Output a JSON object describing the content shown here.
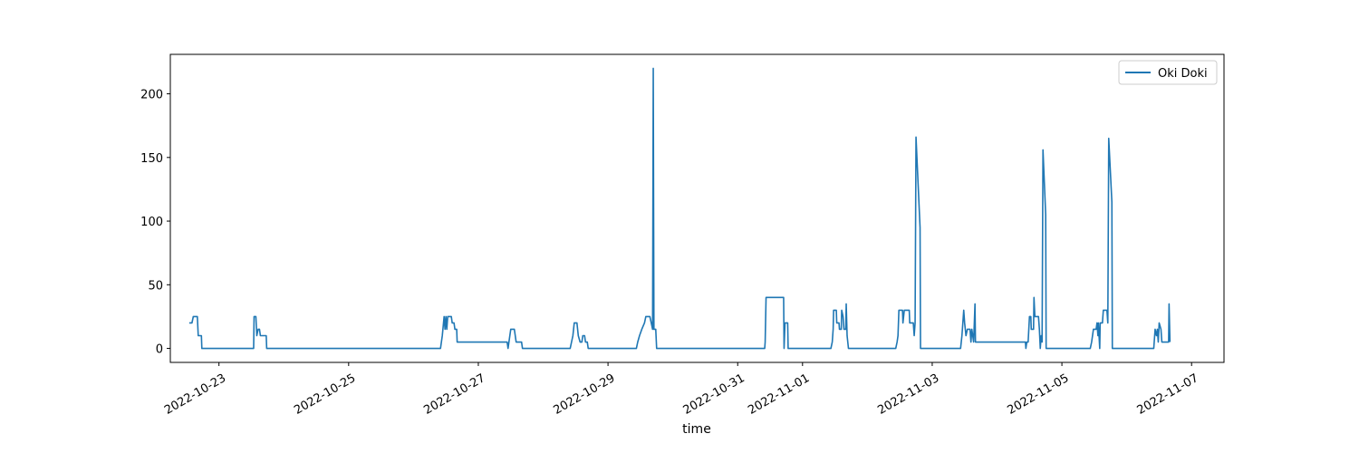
{
  "chart_data": {
    "type": "line",
    "title": "",
    "xlabel": "time",
    "ylabel": "",
    "x_tick_labels": [
      "2022-10-23",
      "2022-10-25",
      "2022-10-27",
      "2022-10-29",
      "2022-10-31",
      "2022-11-01",
      "2022-11-03",
      "2022-11-05",
      "2022-11-07"
    ],
    "x_tick_dates": [
      "2022-10-23",
      "2022-10-25",
      "2022-10-27",
      "2022-10-29",
      "2022-10-31",
      "2022-11-01",
      "2022-11-03",
      "2022-11-05",
      "2022-11-07"
    ],
    "y_ticks": [
      0,
      50,
      100,
      150,
      200
    ],
    "xlim": [
      "2022-10-22 06:00",
      "2022-11-07 12:00"
    ],
    "ylim": [
      -11,
      231
    ],
    "grid": false,
    "legend_placement": "top-right",
    "series": [
      {
        "name": "Oki Doki",
        "color": "#1f77b4",
        "points": [
          [
            "2022-10-22 13:00",
            20
          ],
          [
            "2022-10-22 14:00",
            20
          ],
          [
            "2022-10-22 14:30",
            25
          ],
          [
            "2022-10-22 16:00",
            25
          ],
          [
            "2022-10-22 16:20",
            10
          ],
          [
            "2022-10-22 17:30",
            10
          ],
          [
            "2022-10-22 17:40",
            0
          ],
          [
            "2022-10-23 12:50",
            0
          ],
          [
            "2022-10-23 13:00",
            25
          ],
          [
            "2022-10-23 13:40",
            25
          ],
          [
            "2022-10-23 14:00",
            10
          ],
          [
            "2022-10-23 14:30",
            15
          ],
          [
            "2022-10-23 15:00",
            15
          ],
          [
            "2022-10-23 15:20",
            10
          ],
          [
            "2022-10-23 17:30",
            10
          ],
          [
            "2022-10-23 17:40",
            0
          ],
          [
            "2022-10-26 10:00",
            0
          ],
          [
            "2022-10-26 10:40",
            10
          ],
          [
            "2022-10-26 11:20",
            25
          ],
          [
            "2022-10-26 11:40",
            15
          ],
          [
            "2022-10-26 12:00",
            25
          ],
          [
            "2022-10-26 12:20",
            15
          ],
          [
            "2022-10-26 12:40",
            25
          ],
          [
            "2022-10-26 14:00",
            25
          ],
          [
            "2022-10-26 14:20",
            20
          ],
          [
            "2022-10-26 15:00",
            20
          ],
          [
            "2022-10-26 15:20",
            15
          ],
          [
            "2022-10-26 16:00",
            15
          ],
          [
            "2022-10-26 16:10",
            5
          ],
          [
            "2022-10-27 10:40",
            5
          ],
          [
            "2022-10-27 11:00",
            0
          ],
          [
            "2022-10-27 11:20",
            5
          ],
          [
            "2022-10-27 12:00",
            15
          ],
          [
            "2022-10-27 13:20",
            15
          ],
          [
            "2022-10-27 13:40",
            10
          ],
          [
            "2022-10-27 14:00",
            5
          ],
          [
            "2022-10-27 16:00",
            5
          ],
          [
            "2022-10-27 16:20",
            0
          ],
          [
            "2022-10-28 10:00",
            0
          ],
          [
            "2022-10-28 10:30",
            5
          ],
          [
            "2022-10-28 11:00",
            10
          ],
          [
            "2022-10-28 11:30",
            20
          ],
          [
            "2022-10-28 12:30",
            20
          ],
          [
            "2022-10-28 13:00",
            10
          ],
          [
            "2022-10-28 13:40",
            5
          ],
          [
            "2022-10-28 14:20",
            5
          ],
          [
            "2022-10-28 14:40",
            10
          ],
          [
            "2022-10-28 15:20",
            10
          ],
          [
            "2022-10-28 15:40",
            5
          ],
          [
            "2022-10-28 16:20",
            5
          ],
          [
            "2022-10-28 16:40",
            0
          ],
          [
            "2022-10-29 10:30",
            0
          ],
          [
            "2022-10-29 11:00",
            5
          ],
          [
            "2022-10-29 11:40",
            10
          ],
          [
            "2022-10-29 12:30",
            15
          ],
          [
            "2022-10-29 13:30",
            20
          ],
          [
            "2022-10-29 14:00",
            25
          ],
          [
            "2022-10-29 15:30",
            25
          ],
          [
            "2022-10-29 16:00",
            20
          ],
          [
            "2022-10-29 16:30",
            15
          ],
          [
            "2022-10-29 16:45",
            220
          ],
          [
            "2022-10-29 17:00",
            15
          ],
          [
            "2022-10-29 17:40",
            15
          ],
          [
            "2022-10-29 18:00",
            0
          ],
          [
            "2022-10-31 10:00",
            0
          ],
          [
            "2022-10-31 10:10",
            5
          ],
          [
            "2022-10-31 10:30",
            40
          ],
          [
            "2022-10-31 17:00",
            40
          ],
          [
            "2022-10-31 17:10",
            0
          ],
          [
            "2022-10-31 17:30",
            20
          ],
          [
            "2022-10-31 18:30",
            20
          ],
          [
            "2022-10-31 18:40",
            0
          ],
          [
            "2022-11-01 10:30",
            0
          ],
          [
            "2022-11-01 11:00",
            5
          ],
          [
            "2022-11-01 11:20",
            15
          ],
          [
            "2022-11-01 11:30",
            30
          ],
          [
            "2022-11-01 12:30",
            30
          ],
          [
            "2022-11-01 12:40",
            20
          ],
          [
            "2022-11-01 13:30",
            20
          ],
          [
            "2022-11-01 13:40",
            15
          ],
          [
            "2022-11-01 14:20",
            15
          ],
          [
            "2022-11-01 14:30",
            30
          ],
          [
            "2022-11-01 15:00",
            25
          ],
          [
            "2022-11-01 15:20",
            15
          ],
          [
            "2022-11-01 16:00",
            15
          ],
          [
            "2022-11-01 16:10",
            35
          ],
          [
            "2022-11-01 16:30",
            10
          ],
          [
            "2022-11-01 17:00",
            0
          ],
          [
            "2022-11-02 10:30",
            0
          ],
          [
            "2022-11-02 11:00",
            5
          ],
          [
            "2022-11-02 11:20",
            10
          ],
          [
            "2022-11-02 11:40",
            30
          ],
          [
            "2022-11-02 13:00",
            30
          ],
          [
            "2022-11-02 13:10",
            20
          ],
          [
            "2022-11-02 13:40",
            30
          ],
          [
            "2022-11-02 15:30",
            30
          ],
          [
            "2022-11-02 15:40",
            20
          ],
          [
            "2022-11-02 17:00",
            20
          ],
          [
            "2022-11-02 17:20",
            10
          ],
          [
            "2022-11-02 17:40",
            20
          ],
          [
            "2022-11-02 18:00",
            166
          ],
          [
            "2022-11-02 19:30",
            95
          ],
          [
            "2022-11-02 19:40",
            0
          ],
          [
            "2022-11-03 10:30",
            0
          ],
          [
            "2022-11-03 11:00",
            10
          ],
          [
            "2022-11-03 11:20",
            20
          ],
          [
            "2022-11-03 11:40",
            30
          ],
          [
            "2022-11-03 12:00",
            20
          ],
          [
            "2022-11-03 12:30",
            10
          ],
          [
            "2022-11-03 13:00",
            15
          ],
          [
            "2022-11-03 14:00",
            15
          ],
          [
            "2022-11-03 14:20",
            5
          ],
          [
            "2022-11-03 14:40",
            15
          ],
          [
            "2022-11-03 15:00",
            10
          ],
          [
            "2022-11-03 15:20",
            5
          ],
          [
            "2022-11-03 15:50",
            35
          ],
          [
            "2022-11-03 16:00",
            5
          ],
          [
            "2022-11-04 10:30",
            5
          ],
          [
            "2022-11-04 10:40",
            0
          ],
          [
            "2022-11-04 11:00",
            5
          ],
          [
            "2022-11-04 11:30",
            5
          ],
          [
            "2022-11-04 12:00",
            25
          ],
          [
            "2022-11-04 12:30",
            25
          ],
          [
            "2022-11-04 12:40",
            15
          ],
          [
            "2022-11-04 13:30",
            15
          ],
          [
            "2022-11-04 13:40",
            40
          ],
          [
            "2022-11-04 14:00",
            25
          ],
          [
            "2022-11-04 15:20",
            25
          ],
          [
            "2022-11-04 15:40",
            15
          ],
          [
            "2022-11-04 16:00",
            0
          ],
          [
            "2022-11-04 16:20",
            10
          ],
          [
            "2022-11-04 16:40",
            5
          ],
          [
            "2022-11-04 17:00",
            156
          ],
          [
            "2022-11-04 18:00",
            105
          ],
          [
            "2022-11-04 18:10",
            0
          ],
          [
            "2022-11-05 10:30",
            0
          ],
          [
            "2022-11-05 11:00",
            5
          ],
          [
            "2022-11-05 11:40",
            15
          ],
          [
            "2022-11-05 12:40",
            15
          ],
          [
            "2022-11-05 13:00",
            20
          ],
          [
            "2022-11-05 13:20",
            10
          ],
          [
            "2022-11-05 13:30",
            20
          ],
          [
            "2022-11-05 14:00",
            0
          ],
          [
            "2022-11-05 14:10",
            20
          ],
          [
            "2022-11-05 15:00",
            20
          ],
          [
            "2022-11-05 15:20",
            30
          ],
          [
            "2022-11-05 16:40",
            30
          ],
          [
            "2022-11-05 17:00",
            20
          ],
          [
            "2022-11-05 17:20",
            165
          ],
          [
            "2022-11-05 18:30",
            115
          ],
          [
            "2022-11-05 18:40",
            0
          ],
          [
            "2022-11-06 10:00",
            0
          ],
          [
            "2022-11-06 10:10",
            5
          ],
          [
            "2022-11-06 10:30",
            15
          ],
          [
            "2022-11-06 11:00",
            10
          ],
          [
            "2022-11-06 11:20",
            15
          ],
          [
            "2022-11-06 11:40",
            5
          ],
          [
            "2022-11-06 12:00",
            20
          ],
          [
            "2022-11-06 12:40",
            15
          ],
          [
            "2022-11-06 13:00",
            5
          ],
          [
            "2022-11-06 15:30",
            5
          ],
          [
            "2022-11-06 15:40",
            35
          ],
          [
            "2022-11-06 16:00",
            5
          ]
        ]
      }
    ]
  }
}
